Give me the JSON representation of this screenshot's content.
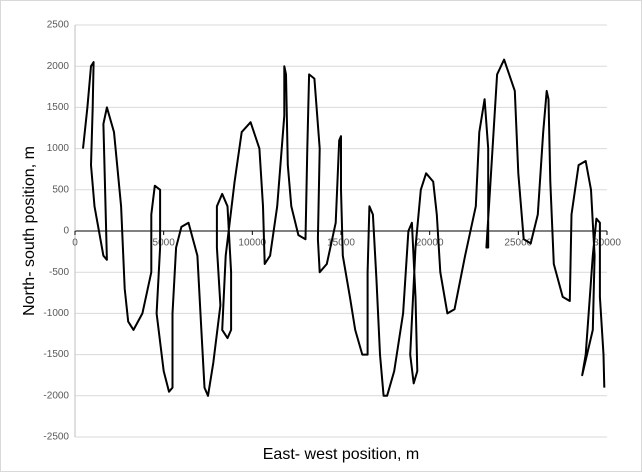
{
  "chart_data": {
    "type": "line",
    "xlabel": "East- west position, m",
    "ylabel": "North- south position, m",
    "color": "#000000",
    "grid": true,
    "xlim": [
      0,
      30000
    ],
    "xticks": [
      0,
      5000,
      10000,
      15000,
      20000,
      25000,
      30000
    ],
    "ylim": [
      -2500,
      2500
    ],
    "yticks": [
      -2500,
      -2000,
      -1500,
      -1000,
      -500,
      0,
      500,
      1000,
      1500,
      2000,
      2500
    ],
    "x": [
      450,
      700,
      900,
      1050,
      1000,
      900,
      1100,
      1600,
      1800,
      1700,
      1600,
      1800,
      2200,
      2600,
      2800,
      3000,
      3300,
      3800,
      4300,
      4300,
      4500,
      4800,
      4800,
      4600,
      5000,
      5300,
      5500,
      5500,
      5700,
      6000,
      6400,
      6900,
      7100,
      7300,
      7500,
      7800,
      8200,
      8000,
      8000,
      8300,
      8600,
      8800,
      8800,
      8600,
      8300,
      8500,
      9000,
      9400,
      9900,
      10400,
      10600,
      10700,
      11000,
      11400,
      11800,
      11800,
      11900,
      12000,
      12200,
      12600,
      13000,
      13100,
      13200,
      13500,
      13800,
      13700,
      13800,
      14200,
      14700,
      14900,
      15000,
      15000,
      15100,
      15500,
      15800,
      16200,
      16500,
      16500,
      16600,
      16800,
      17000,
      17200,
      17400,
      17600,
      18000,
      18500,
      18800,
      19000,
      19200,
      19300,
      19100,
      18900,
      19200,
      19500,
      19800,
      20200,
      20400,
      20600,
      21000,
      21400,
      22000,
      22600,
      22800,
      23100,
      23300,
      23300,
      23200,
      23400,
      23800,
      24200,
      24800,
      25000,
      25300,
      25700,
      26100,
      26400,
      26600,
      26700,
      26800,
      27000,
      27500,
      27900,
      28000,
      28400,
      28800,
      29100,
      29300,
      29200,
      28600,
      28800,
      29200,
      29400,
      29600,
      29600,
      29800,
      29850
    ],
    "values": [
      1000,
      1500,
      2000,
      2050,
      1500,
      800,
      300,
      -300,
      -350,
      500,
      1300,
      1500,
      1200,
      300,
      -700,
      -1100,
      -1200,
      -1000,
      -500,
      200,
      550,
      500,
      -200,
      -1000,
      -1700,
      -1950,
      -1900,
      -1000,
      -200,
      50,
      100,
      -300,
      -1100,
      -1900,
      -2000,
      -1600,
      -900,
      -200,
      300,
      450,
      300,
      -500,
      -1200,
      -1300,
      -1200,
      -300,
      600,
      1200,
      1320,
      1000,
      300,
      -400,
      -300,
      300,
      1400,
      2000,
      1900,
      800,
      300,
      -50,
      -100,
      1000,
      1900,
      1850,
      1000,
      -100,
      -500,
      -400,
      100,
      1100,
      1150,
      500,
      -300,
      -800,
      -1200,
      -1500,
      -1500,
      -500,
      300,
      200,
      -600,
      -1500,
      -2000,
      -2000,
      -1700,
      -1000,
      0,
      100,
      -800,
      -1700,
      -1850,
      -1500,
      -200,
      500,
      700,
      600,
      200,
      -500,
      -1000,
      -950,
      -300,
      300,
      1200,
      1600,
      1000,
      -200,
      -200,
      500,
      1900,
      2080,
      1700,
      700,
      -100,
      -150,
      200,
      1200,
      1700,
      1600,
      600,
      -400,
      -800,
      -850,
      200,
      800,
      850,
      500,
      -300,
      -1200,
      -1750,
      -1500,
      -300,
      150,
      100,
      -800,
      -1500,
      -1900
    ]
  }
}
